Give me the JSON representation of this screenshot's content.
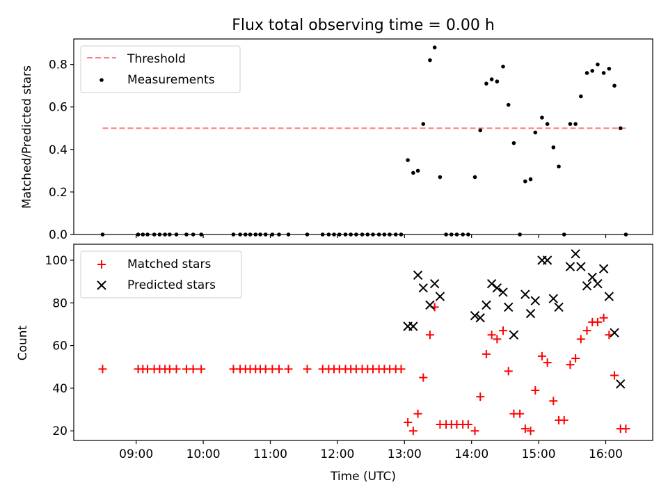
{
  "chart_data": [
    {
      "type": "scatter",
      "title": "Flux total observing time = 0.00 h",
      "ylabel": "Matched/Predicted stars",
      "xlabel": "",
      "x_unit": "hours UTC",
      "xlim": [
        8.07,
        16.7
      ],
      "ylim": [
        0,
        0.92
      ],
      "yticks": [
        0.0,
        0.2,
        0.4,
        0.6,
        0.8
      ],
      "ytick_labels": [
        "0.0",
        "0.2",
        "0.4",
        "0.6",
        "0.8"
      ],
      "legend_position": "upper-left",
      "series": [
        {
          "name": "Threshold",
          "kind": "line",
          "style": "dashed",
          "color": "#ff7f7f",
          "x": [
            8.5,
            16.3
          ],
          "y": [
            0.5,
            0.5
          ]
        },
        {
          "name": "Measurements",
          "kind": "scatter",
          "marker": "dot",
          "color": "#000000",
          "x": [
            8.5,
            9.03,
            9.1,
            9.17,
            9.27,
            9.35,
            9.43,
            9.5,
            9.6,
            9.75,
            9.85,
            9.97,
            10.45,
            10.55,
            10.63,
            10.7,
            10.78,
            10.85,
            10.93,
            11.03,
            11.13,
            11.27,
            11.55,
            11.78,
            11.87,
            11.95,
            12.03,
            12.12,
            12.2,
            12.28,
            12.37,
            12.45,
            12.53,
            12.62,
            12.7,
            12.78,
            12.87,
            12.95,
            13.05,
            13.13,
            13.2,
            13.28,
            13.38,
            13.45,
            13.53,
            13.62,
            13.7,
            13.78,
            13.87,
            13.95,
            14.05,
            14.13,
            14.22,
            14.3,
            14.38,
            14.47,
            14.55,
            14.63,
            14.72,
            14.8,
            14.88,
            14.95,
            15.05,
            15.13,
            15.22,
            15.3,
            15.38,
            15.47,
            15.55,
            15.63,
            15.72,
            15.8,
            15.88,
            15.97,
            16.05,
            16.13,
            16.22,
            16.3
          ],
          "y": [
            0.0,
            0.0,
            0.0,
            0.0,
            0.0,
            0.0,
            0.0,
            0.0,
            0.0,
            0.0,
            0.0,
            0.0,
            0.0,
            0.0,
            0.0,
            0.0,
            0.0,
            0.0,
            0.0,
            0.0,
            0.0,
            0.0,
            0.0,
            0.0,
            0.0,
            0.0,
            0.0,
            0.0,
            0.0,
            0.0,
            0.0,
            0.0,
            0.0,
            0.0,
            0.0,
            0.0,
            0.0,
            0.0,
            0.35,
            0.29,
            0.3,
            0.52,
            0.82,
            0.88,
            0.27,
            0.0,
            0.0,
            0.0,
            0.0,
            0.0,
            0.27,
            0.49,
            0.71,
            0.73,
            0.72,
            0.79,
            0.61,
            0.43,
            0.0,
            0.25,
            0.26,
            0.48,
            0.55,
            0.52,
            0.41,
            0.32,
            0.0,
            0.52,
            0.52,
            0.65,
            0.76,
            0.77,
            0.8,
            0.76,
            0.78,
            0.7,
            0.5,
            0.0
          ]
        }
      ]
    },
    {
      "type": "scatter",
      "title": "",
      "ylabel": "Count",
      "xlabel": "Time (UTC)",
      "x_unit": "hours UTC",
      "xlim": [
        8.07,
        16.7
      ],
      "ylim": [
        15.5,
        107.5
      ],
      "xticks": [
        9,
        10,
        11,
        12,
        13,
        14,
        15,
        16
      ],
      "xtick_labels": [
        "09:00",
        "10:00",
        "11:00",
        "12:00",
        "13:00",
        "14:00",
        "15:00",
        "16:00"
      ],
      "yticks": [
        20,
        40,
        60,
        80,
        100
      ],
      "ytick_labels": [
        "20",
        "40",
        "60",
        "80",
        "100"
      ],
      "legend_position": "upper-left",
      "series": [
        {
          "name": "Matched stars",
          "kind": "scatter",
          "marker": "plus",
          "color": "#ff0000",
          "x": [
            8.5,
            9.03,
            9.1,
            9.17,
            9.27,
            9.35,
            9.43,
            9.5,
            9.6,
            9.75,
            9.85,
            9.97,
            10.45,
            10.55,
            10.63,
            10.7,
            10.78,
            10.85,
            10.93,
            11.03,
            11.13,
            11.27,
            11.55,
            11.78,
            11.87,
            11.95,
            12.03,
            12.12,
            12.2,
            12.28,
            12.37,
            12.45,
            12.53,
            12.62,
            12.7,
            12.78,
            12.87,
            12.95,
            13.05,
            13.13,
            13.2,
            13.28,
            13.38,
            13.45,
            13.53,
            13.62,
            13.7,
            13.78,
            13.87,
            13.95,
            14.05,
            14.13,
            14.22,
            14.3,
            14.38,
            14.47,
            14.55,
            14.63,
            14.72,
            14.8,
            14.88,
            14.95,
            15.05,
            15.13,
            15.22,
            15.3,
            15.38,
            15.47,
            15.55,
            15.63,
            15.72,
            15.8,
            15.88,
            15.97,
            16.05,
            16.13,
            16.22,
            16.3
          ],
          "y": [
            49,
            49,
            49,
            49,
            49,
            49,
            49,
            49,
            49,
            49,
            49,
            49,
            49,
            49,
            49,
            49,
            49,
            49,
            49,
            49,
            49,
            49,
            49,
            49,
            49,
            49,
            49,
            49,
            49,
            49,
            49,
            49,
            49,
            49,
            49,
            49,
            49,
            49,
            24,
            20,
            28,
            45,
            65,
            78,
            23,
            23,
            23,
            23,
            23,
            23,
            20,
            36,
            56,
            65,
            63,
            67,
            48,
            28,
            28,
            21,
            20,
            39,
            55,
            52,
            34,
            25,
            25,
            51,
            54,
            63,
            67,
            71,
            71,
            73,
            65,
            46,
            21,
            21
          ]
        },
        {
          "name": "Predicted stars",
          "kind": "scatter",
          "marker": "x",
          "color": "#000000",
          "x": [
            13.05,
            13.13,
            13.2,
            13.28,
            13.38,
            13.45,
            13.53,
            14.05,
            14.13,
            14.22,
            14.3,
            14.38,
            14.47,
            14.55,
            14.63,
            14.8,
            14.88,
            14.95,
            15.05,
            15.13,
            15.22,
            15.3,
            15.47,
            15.55,
            15.63,
            15.72,
            15.8,
            15.88,
            15.97,
            16.05,
            16.13,
            16.22
          ],
          "y": [
            69,
            69,
            93,
            87,
            79,
            89,
            83,
            74,
            73,
            79,
            89,
            87,
            85,
            78,
            65,
            84,
            75,
            81,
            100,
            100,
            82,
            78,
            97,
            103,
            97,
            88,
            92,
            89,
            96,
            83,
            66,
            42
          ]
        }
      ]
    }
  ]
}
